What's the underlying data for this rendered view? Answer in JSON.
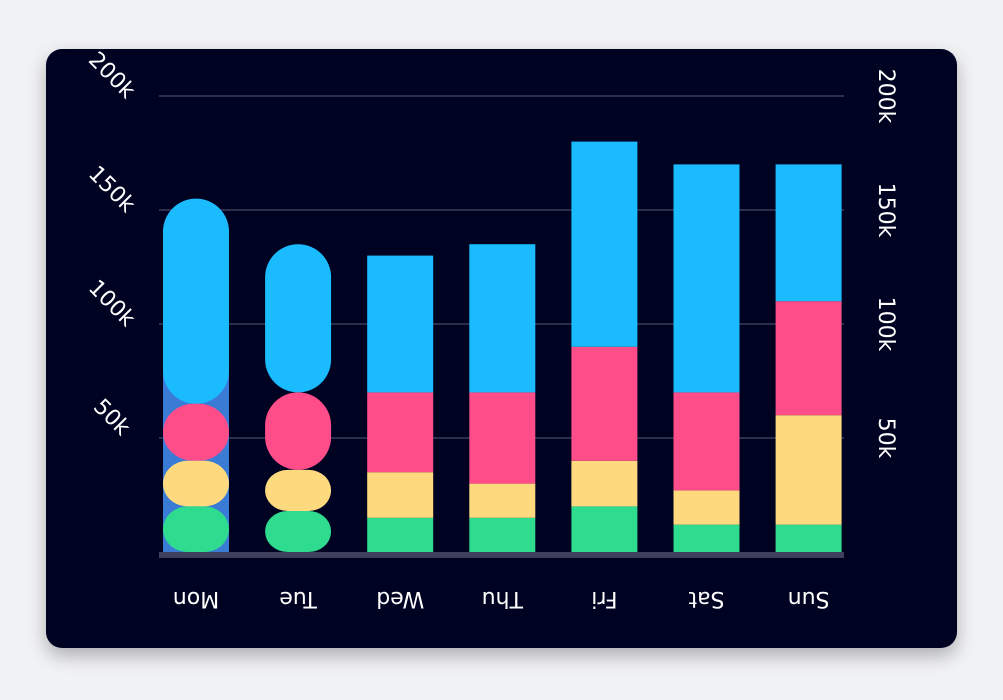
{
  "chart_data": {
    "type": "bar",
    "stacked": true,
    "categories": [
      "Mon",
      "Tue",
      "Wed",
      "Thu",
      "Fri",
      "Sat",
      "Sun"
    ],
    "series": [
      {
        "values": [
          20000,
          18000,
          15000,
          15000,
          20000,
          12000,
          12000
        ]
      },
      {
        "values": [
          20000,
          18000,
          20000,
          15000,
          20000,
          15000,
          48000
        ]
      },
      {
        "values": [
          25000,
          34000,
          35000,
          40000,
          50000,
          43000,
          50000
        ]
      },
      {
        "values": [
          90000,
          65000,
          60000,
          65000,
          90000,
          100000,
          60000
        ]
      }
    ],
    "colors": [
      "#2edb8f",
      "#ffd97d",
      "#ff4d8a",
      "#1bbcff"
    ],
    "overlay_color": "#3a7bd5",
    "ylim": [
      0,
      200000
    ],
    "yticks": [
      {
        "value": 50000,
        "label": "50k"
      },
      {
        "value": 100000,
        "label": "100k"
      },
      {
        "value": 150000,
        "label": "150k"
      },
      {
        "value": 200000,
        "label": "200k"
      }
    ],
    "grid": true,
    "background": "#000222",
    "grid_color": "#2b2d4a",
    "axis_color": "#3d3f5c",
    "text_color": "#ffffff"
  }
}
